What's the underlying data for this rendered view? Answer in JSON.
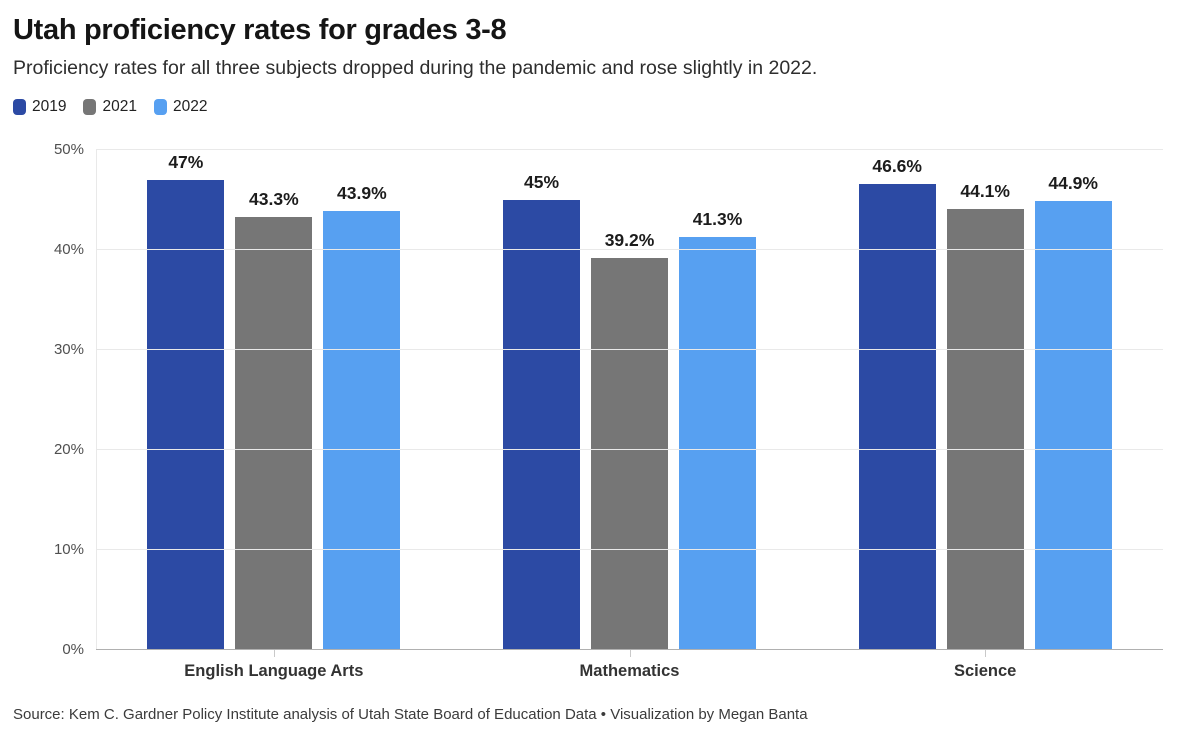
{
  "header": {
    "title": "Utah proficiency rates for grades 3-8",
    "subtitle": "Proficiency rates for all three subjects dropped during the pandemic and rose slightly in 2022."
  },
  "chart_data": {
    "type": "bar",
    "title": "Utah proficiency rates for grades 3-8",
    "subtitle": "Proficiency rates for all three subjects dropped during the pandemic and rose slightly in 2022.",
    "categories": [
      "English Language Arts",
      "Mathematics",
      "Science"
    ],
    "series": [
      {
        "name": "2019",
        "color": "#2c4aa4",
        "values": [
          47,
          45,
          46.6
        ],
        "value_labels": [
          "47%",
          "45%",
          "46.6%"
        ]
      },
      {
        "name": "2021",
        "color": "#767676",
        "values": [
          43.3,
          39.2,
          44.1
        ],
        "value_labels": [
          "43.3%",
          "39.2%",
          "44.1%"
        ]
      },
      {
        "name": "2022",
        "color": "#57a0f1",
        "values": [
          43.9,
          41.3,
          44.9
        ],
        "value_labels": [
          "43.9%",
          "41.3%",
          "44.9%"
        ]
      }
    ],
    "ylim": [
      0,
      50
    ],
    "yticks": [
      {
        "value": 0,
        "label": "0%"
      },
      {
        "value": 10,
        "label": "10%"
      },
      {
        "value": 20,
        "label": "20%"
      },
      {
        "value": 30,
        "label": "30%"
      },
      {
        "value": 40,
        "label": "40%"
      },
      {
        "value": 50,
        "label": "50%"
      }
    ],
    "xlabel": "",
    "ylabel": "",
    "grid": "horizontal",
    "legend_position": "top-left"
  },
  "footer": {
    "source": "Source: Kem C. Gardner Policy Institute analysis of Utah State Board of Education Data • Visualization by Megan Banta"
  }
}
